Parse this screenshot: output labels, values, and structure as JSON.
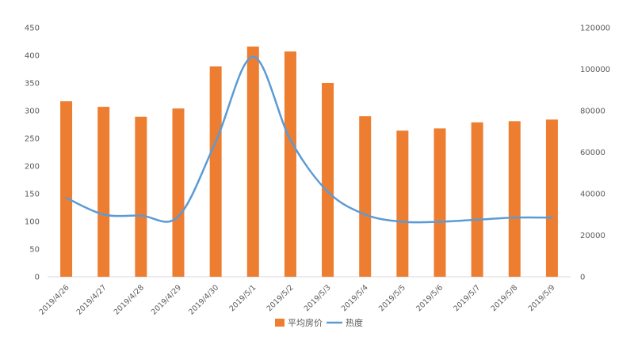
{
  "chart_data": {
    "type": "bar",
    "categories": [
      "2019/4/26",
      "2019/4/27",
      "2019/4/28",
      "2019/4/29",
      "2019/4/30",
      "2019/5/1",
      "2019/5/2",
      "2019/5/3",
      "2019/5/4",
      "2019/5/5",
      "2019/5/6",
      "2019/5/7",
      "2019/5/8",
      "2019/5/9"
    ],
    "series": [
      {
        "name": "平均房价",
        "type": "bar",
        "axis": "left",
        "color": "#ED7D31",
        "values": [
          317,
          307,
          289,
          304,
          380,
          416,
          407,
          350,
          290,
          264,
          268,
          279,
          281,
          284
        ]
      },
      {
        "name": "热度",
        "type": "line",
        "axis": "right",
        "color": "#5B9BD5",
        "smooth": true,
        "values": [
          38000,
          30000,
          29500,
          29000,
          65000,
          106000,
          66000,
          41000,
          30000,
          26500,
          26500,
          27500,
          28500,
          28500
        ]
      }
    ],
    "y_left": {
      "min": 0,
      "max": 450,
      "ticks": [
        "0",
        "50",
        "100",
        "150",
        "200",
        "250",
        "300",
        "350",
        "400",
        "450"
      ]
    },
    "y_right": {
      "min": 0,
      "max": 120000,
      "ticks": [
        "0",
        "20000",
        "40000",
        "60000",
        "80000",
        "100000",
        "120000"
      ]
    },
    "grid": false,
    "legend_position": "bottom"
  }
}
